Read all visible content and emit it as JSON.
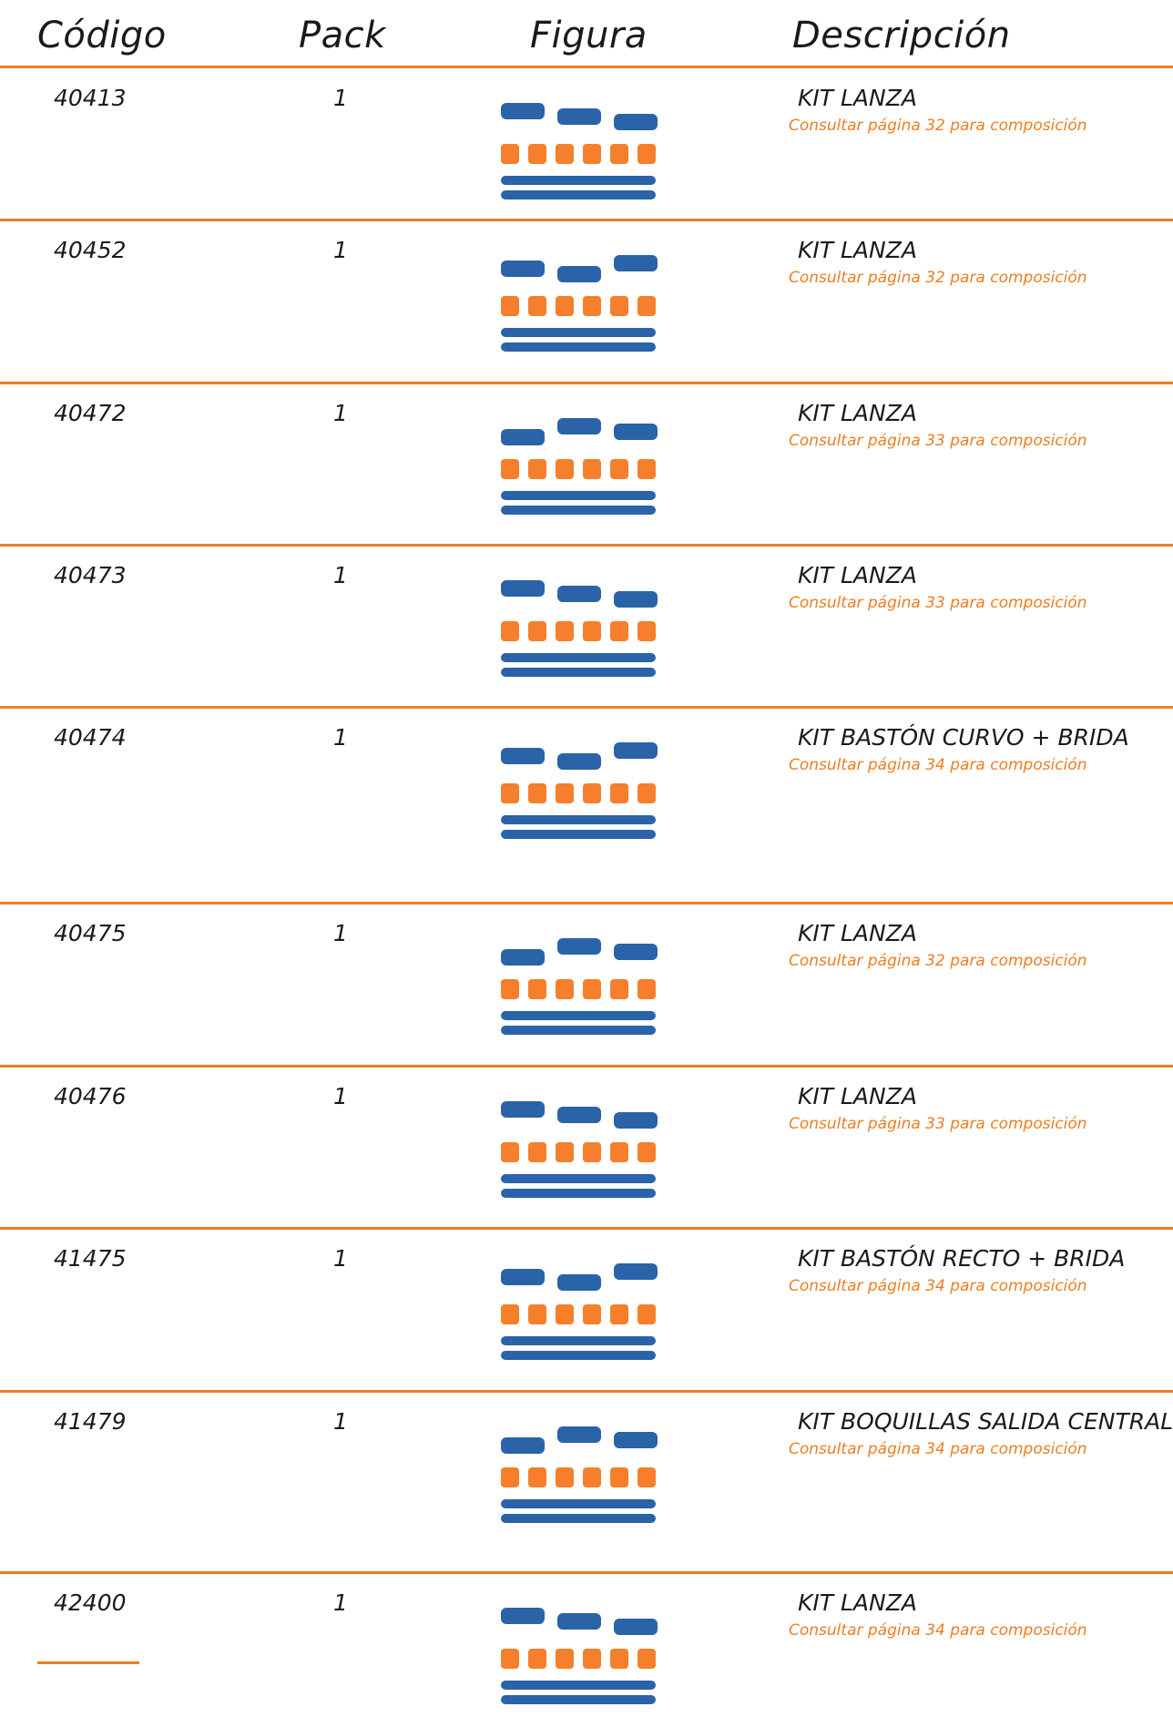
{
  "header": {
    "codigo": "Código",
    "pack": "Pack",
    "figura": "Figura",
    "descripcion": "Descripción"
  },
  "rows": [
    {
      "code": "40413",
      "pack": "1",
      "title": "KIT LANZA",
      "note": "Consultar página 32 para composición"
    },
    {
      "code": "40452",
      "pack": "1",
      "title": "KIT LANZA",
      "note": "Consultar página 32 para composición"
    },
    {
      "code": "40472",
      "pack": "1",
      "title": "KIT LANZA",
      "note": "Consultar página 33 para composición"
    },
    {
      "code": "40473",
      "pack": "1",
      "title": "KIT LANZA",
      "note": "Consultar página 33 para composición"
    },
    {
      "code": "40474",
      "pack": "1",
      "title": "KIT BASTÓN CURVO + BRIDA",
      "note": "Consultar página 34 para composición"
    },
    {
      "code": "40475",
      "pack": "1",
      "title": "KIT LANZA",
      "note": "Consultar página 32 para composición"
    },
    {
      "code": "40476",
      "pack": "1",
      "title": "KIT LANZA",
      "note": "Consultar página 33 para composición"
    },
    {
      "code": "41475",
      "pack": "1",
      "title": "KIT BASTÓN RECTO + BRIDA",
      "note": "Consultar página 34 para composición"
    },
    {
      "code": "41479",
      "pack": "1",
      "title": "KIT BOQUILLAS SALIDA CENTRAL",
      "note": "Consultar página 34 para composición"
    },
    {
      "code": "42400",
      "pack": "1",
      "title": "KIT LANZA",
      "note": "Consultar página 34 para composición"
    }
  ]
}
